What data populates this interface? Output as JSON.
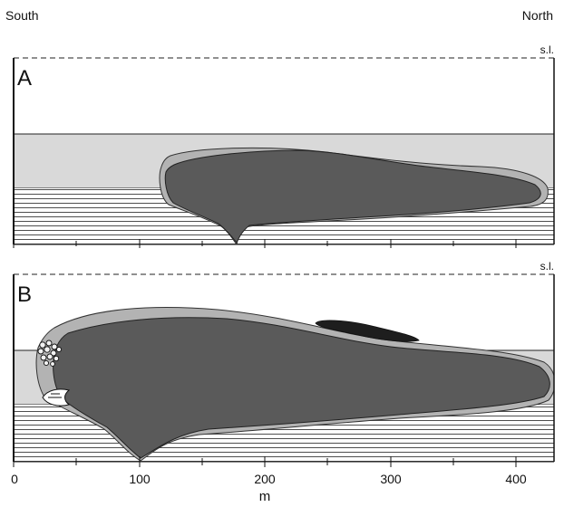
{
  "direction": {
    "left": "South",
    "right": "North"
  },
  "sea_level_label": "s.l.",
  "panels": [
    {
      "id": "A",
      "label": "A"
    },
    {
      "id": "B",
      "label": "B"
    }
  ],
  "x_axis": {
    "ticks": [
      "0",
      "100",
      "200",
      "300",
      "400"
    ],
    "unit": "m"
  },
  "colors": {
    "core": "#5a5a5a",
    "rim": "#b3b3b3",
    "band_light": "#d9d9d9",
    "hatch": "#222222",
    "lens": "#1e1e1e"
  }
}
